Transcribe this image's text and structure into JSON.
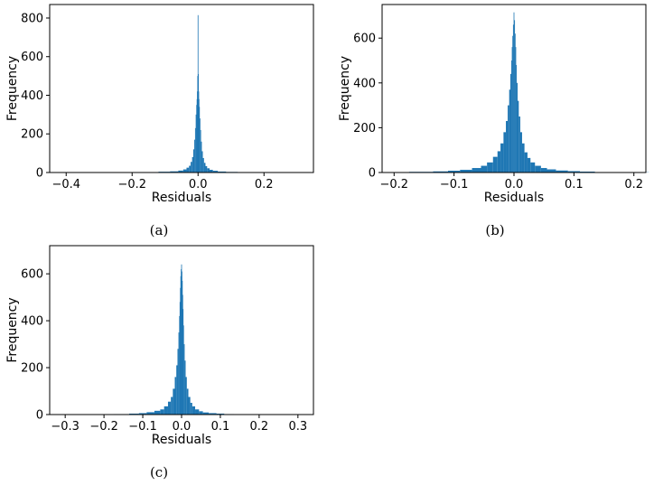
{
  "figure": {
    "colors": {
      "bar": "#1f77b4",
      "axis": "#000000",
      "background": "#ffffff"
    }
  },
  "chart_data": [
    {
      "type": "bar",
      "panel": "a",
      "caption": "(a)",
      "xlabel": "Residuals",
      "ylabel": "Frequency",
      "xlim": [
        -0.45,
        0.35
      ],
      "ylim": [
        0,
        870
      ],
      "xticks": [
        -0.4,
        -0.2,
        0.0,
        0.2
      ],
      "xtick_labels": [
        "−0.4",
        "−0.2",
        "0.0",
        "0.2"
      ],
      "yticks": [
        0,
        200,
        400,
        600,
        800
      ],
      "ytick_labels": [
        "0",
        "200",
        "400",
        "600",
        "800"
      ],
      "grid": false,
      "series": [
        {
          "x": [
            -0.2,
            -0.14,
            -0.1,
            -0.07,
            -0.05,
            -0.04,
            -0.03,
            -0.025,
            -0.02,
            -0.016,
            -0.013,
            -0.01,
            -0.008,
            -0.006,
            -0.004,
            -0.003,
            -0.002,
            -0.001,
            0.0,
            0.001,
            0.002,
            0.003,
            0.004,
            0.006,
            0.008,
            0.01,
            0.013,
            0.016,
            0.02,
            0.025,
            0.03,
            0.04,
            0.05,
            0.07,
            0.1,
            0.14,
            0.2
          ],
          "values": [
            1,
            2,
            4,
            6,
            10,
            16,
            25,
            35,
            55,
            80,
            120,
            170,
            230,
            300,
            350,
            380,
            420,
            500,
            815,
            510,
            420,
            380,
            340,
            280,
            220,
            160,
            110,
            75,
            50,
            33,
            22,
            14,
            9,
            5,
            3,
            2,
            1
          ]
        }
      ]
    },
    {
      "type": "bar",
      "panel": "b",
      "caption": "(b)",
      "xlabel": "Residuals",
      "ylabel": "Frequency",
      "xlim": [
        -0.22,
        0.22
      ],
      "ylim": [
        0,
        750
      ],
      "xticks": [
        -0.2,
        -0.1,
        0.0,
        0.1,
        0.2
      ],
      "xtick_labels": [
        "−0.2",
        "−0.1",
        "0.0",
        "0.1",
        "0.2"
      ],
      "yticks": [
        0,
        200,
        400,
        600
      ],
      "ytick_labels": [
        "0",
        "200",
        "400",
        "600"
      ],
      "grid": false,
      "series": [
        {
          "x": [
            -0.2,
            -0.15,
            -0.12,
            -0.1,
            -0.08,
            -0.06,
            -0.05,
            -0.04,
            -0.03,
            -0.025,
            -0.02,
            -0.015,
            -0.012,
            -0.009,
            -0.007,
            -0.005,
            -0.004,
            -0.003,
            -0.002,
            -0.001,
            0.0,
            0.001,
            0.002,
            0.003,
            0.004,
            0.005,
            0.007,
            0.009,
            0.012,
            0.015,
            0.02,
            0.025,
            0.03,
            0.04,
            0.05,
            0.06,
            0.08,
            0.1,
            0.12,
            0.15,
            0.2
          ],
          "values": [
            1,
            3,
            5,
            8,
            12,
            20,
            30,
            45,
            70,
            95,
            130,
            180,
            230,
            300,
            370,
            440,
            500,
            560,
            610,
            660,
            715,
            680,
            620,
            560,
            480,
            400,
            320,
            250,
            180,
            130,
            90,
            65,
            45,
            30,
            20,
            14,
            9,
            6,
            4,
            2,
            1
          ]
        }
      ]
    },
    {
      "type": "bar",
      "panel": "c",
      "caption": "(c)",
      "xlabel": "Residuals",
      "ylabel": "Frequency",
      "xlim": [
        -0.34,
        0.34
      ],
      "ylim": [
        0,
        720
      ],
      "xticks": [
        -0.3,
        -0.2,
        -0.1,
        0.0,
        0.1,
        0.2,
        0.3
      ],
      "xtick_labels": [
        "−0.3",
        "−0.2",
        "−0.1",
        "0.0",
        "0.1",
        "0.2",
        "0.3"
      ],
      "yticks": [
        0,
        200,
        400,
        600
      ],
      "ytick_labels": [
        "0",
        "200",
        "400",
        "600"
      ],
      "grid": false,
      "series": [
        {
          "x": [
            -0.2,
            -0.15,
            -0.12,
            -0.1,
            -0.08,
            -0.06,
            -0.05,
            -0.04,
            -0.03,
            -0.025,
            -0.02,
            -0.015,
            -0.012,
            -0.009,
            -0.007,
            -0.005,
            -0.004,
            -0.003,
            -0.002,
            -0.001,
            0.0,
            0.001,
            0.002,
            0.003,
            0.004,
            0.005,
            0.007,
            0.009,
            0.012,
            0.015,
            0.02,
            0.025,
            0.03,
            0.04,
            0.05,
            0.06,
            0.08,
            0.1,
            0.12,
            0.15,
            0.2
          ],
          "values": [
            1,
            2,
            4,
            6,
            10,
            16,
            22,
            35,
            55,
            75,
            110,
            160,
            210,
            280,
            350,
            420,
            480,
            540,
            590,
            620,
            640,
            610,
            570,
            510,
            450,
            380,
            300,
            230,
            160,
            110,
            75,
            50,
            35,
            22,
            14,
            9,
            6,
            4,
            2,
            1,
            1
          ]
        }
      ]
    }
  ]
}
